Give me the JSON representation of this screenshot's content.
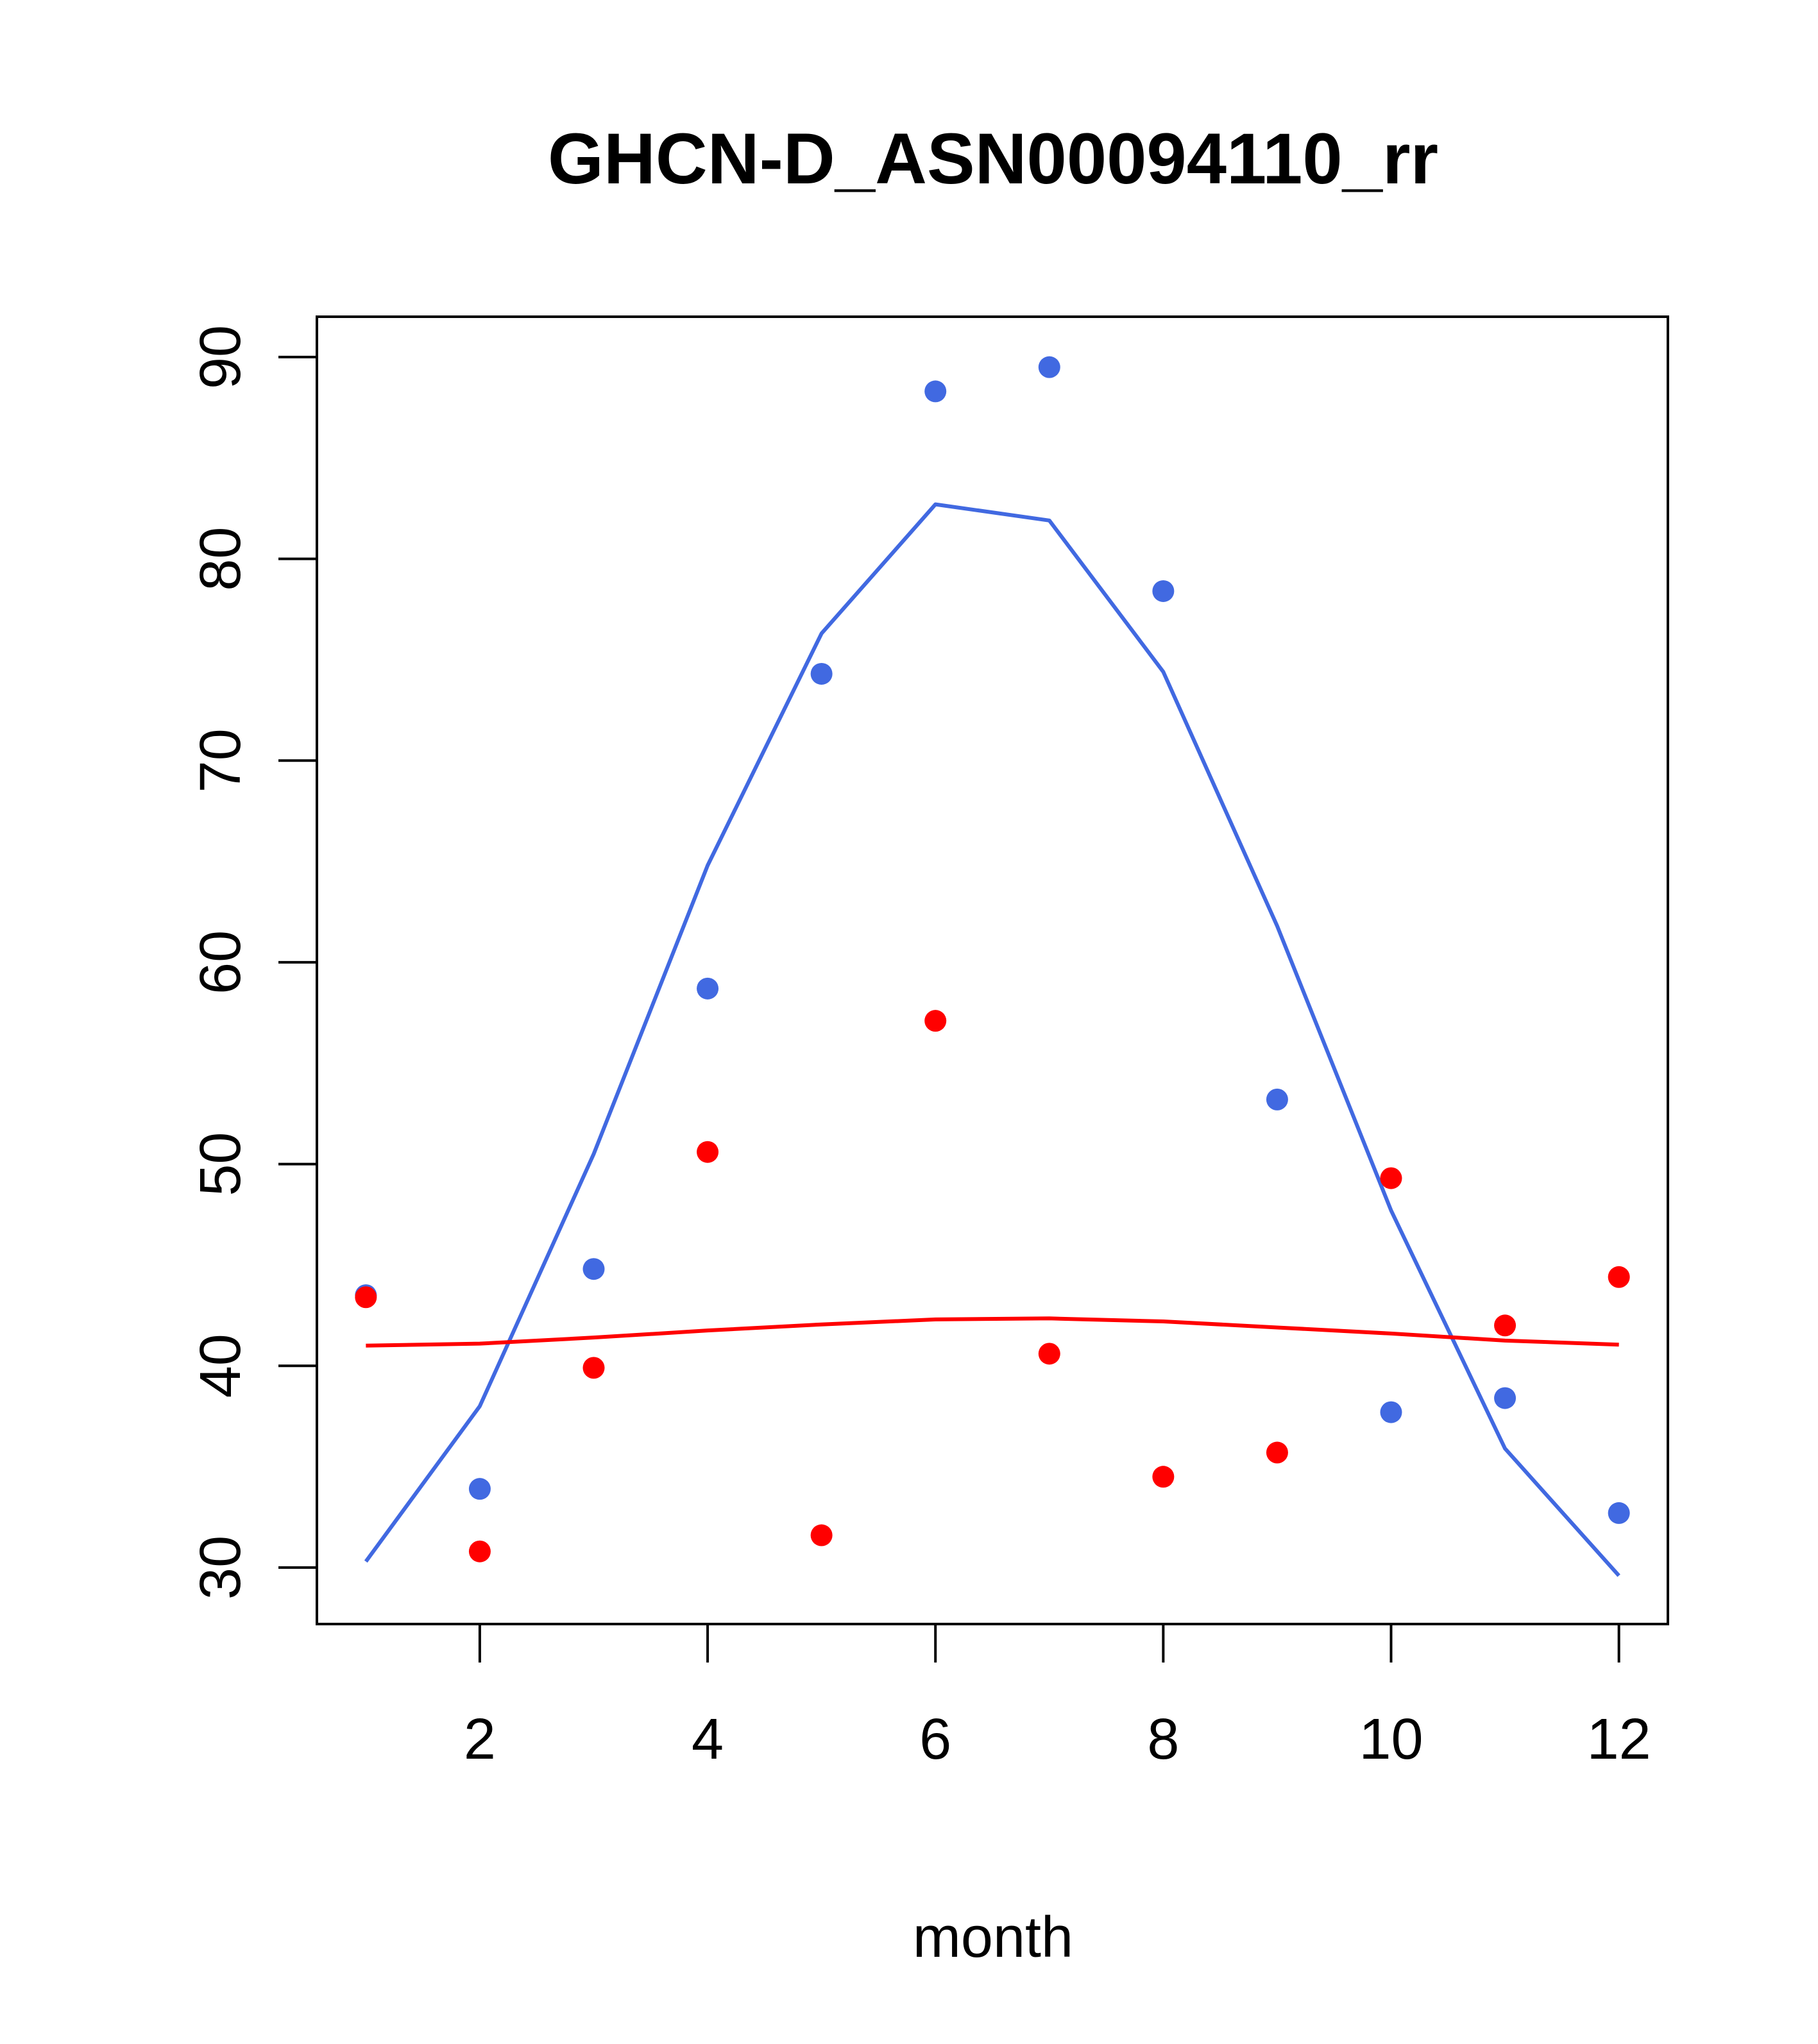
{
  "chart_data": {
    "type": "scatter",
    "title": "GHCN-D_ASN00094110_rr",
    "xlabel": "month",
    "ylabel": "",
    "xlim": [
      0.57,
      12.43
    ],
    "ylim": [
      27.2,
      92.0
    ],
    "x_ticks": [
      2,
      4,
      6,
      8,
      10,
      12
    ],
    "y_ticks": [
      30,
      40,
      50,
      60,
      70,
      80,
      90
    ],
    "x": [
      1,
      2,
      3,
      4,
      5,
      6,
      7,
      8,
      9,
      10,
      11,
      12
    ],
    "grid": false,
    "series": [
      {
        "name": "blue points",
        "color": "#4169E1",
        "kind": "points",
        "values": [
          43.5,
          33.9,
          44.8,
          58.7,
          74.3,
          88.3,
          89.5,
          78.4,
          53.2,
          37.7,
          38.4,
          32.7
        ]
      },
      {
        "name": "red points",
        "color": "#FF0000",
        "kind": "points",
        "values": [
          43.4,
          30.8,
          39.9,
          50.6,
          31.6,
          57.1,
          40.6,
          34.5,
          35.7,
          49.3,
          42.0,
          44.4
        ]
      },
      {
        "name": "blue fit",
        "color": "#4169E1",
        "kind": "line",
        "values": [
          30.3,
          38.0,
          50.5,
          64.8,
          76.3,
          82.7,
          81.9,
          74.4,
          61.8,
          47.7,
          35.9,
          29.6
        ]
      },
      {
        "name": "red fit",
        "color": "#FF0000",
        "kind": "line",
        "values": [
          41.0,
          41.1,
          41.4,
          41.75,
          42.05,
          42.3,
          42.35,
          42.2,
          41.9,
          41.6,
          41.25,
          41.05
        ]
      }
    ]
  }
}
